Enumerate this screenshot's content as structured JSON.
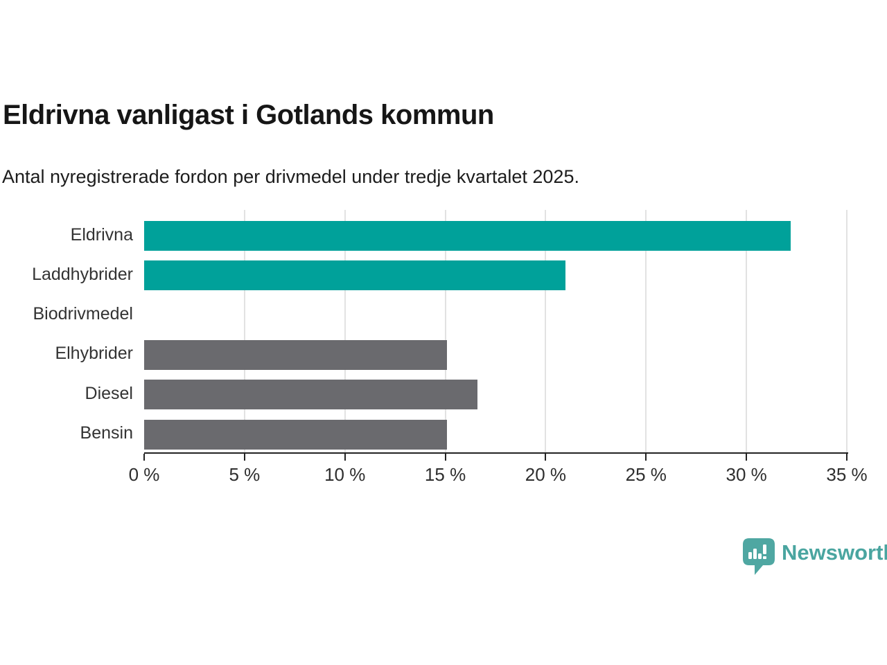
{
  "title": "Eldrivna vanligast i Gotlands kommun",
  "subtitle": "Antal nyregistrerade fordon per drivmedel under tredje kvartalet 2025.",
  "chart_data": {
    "type": "bar",
    "orientation": "horizontal",
    "title": "Eldrivna vanligast i Gotlands kommun",
    "subtitle": "Antal nyregistrerade fordon per drivmedel under tredje kvartalet 2025.",
    "categories": [
      "Eldrivna",
      "Laddhybrider",
      "Biodrivmedel",
      "Elhybrider",
      "Diesel",
      "Bensin"
    ],
    "values": [
      32.2,
      21.0,
      0,
      15.1,
      16.6,
      15.1
    ],
    "unit": "%",
    "xlim": [
      0,
      35
    ],
    "x_ticks": [
      0,
      5,
      10,
      15,
      20,
      25,
      30,
      35
    ],
    "x_tick_labels": [
      "0 %",
      "5 %",
      "10 %",
      "15 %",
      "20 %",
      "25 %",
      "30 %",
      "35 %"
    ],
    "grid": "vertical-gridlines-on",
    "bar_colors": [
      "#00a19a",
      "#00a19a",
      "#00a19a",
      "#6a6a6e",
      "#6a6a6e",
      "#6a6a6e"
    ],
    "highlight_color": "#00a19a",
    "default_color": "#6a6a6e",
    "gridline_color": "#e2e2e2",
    "axis_color": "#222222"
  },
  "footer": {
    "brand": "Newsworthy",
    "brand_color": "#4aa5a0",
    "logo_icon": "bar-chart-speech-bubble-icon"
  }
}
